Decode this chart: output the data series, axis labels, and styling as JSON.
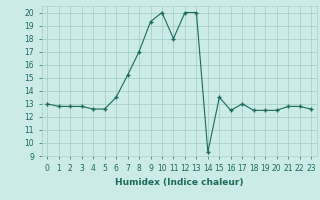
{
  "title": "",
  "xlabel": "Humidex (Indice chaleur)",
  "x": [
    0,
    1,
    2,
    3,
    4,
    5,
    6,
    7,
    8,
    9,
    10,
    11,
    12,
    13,
    14,
    15,
    16,
    17,
    18,
    19,
    20,
    21,
    22,
    23
  ],
  "y": [
    13,
    12.8,
    12.8,
    12.8,
    12.6,
    12.6,
    13.5,
    15.2,
    17.0,
    19.3,
    20.0,
    18.0,
    20.0,
    20.0,
    9.3,
    13.5,
    12.5,
    13.0,
    12.5,
    12.5,
    12.5,
    12.8,
    12.8,
    12.6
  ],
  "line_color": "#1a6b5a",
  "marker": "+",
  "bg_color": "#cceae7",
  "grid_color": "#aacfcc",
  "xlim": [
    -0.5,
    23.5
  ],
  "ylim": [
    9,
    20.5
  ],
  "yticks": [
    9,
    10,
    11,
    12,
    13,
    14,
    15,
    16,
    17,
    18,
    19,
    20
  ],
  "xticks": [
    0,
    1,
    2,
    3,
    4,
    5,
    6,
    7,
    8,
    9,
    10,
    11,
    12,
    13,
    14,
    15,
    16,
    17,
    18,
    19,
    20,
    21,
    22,
    23
  ],
  "tick_fontsize": 5.5,
  "xlabel_fontsize": 6.5,
  "markersize": 3,
  "linewidth": 0.8
}
